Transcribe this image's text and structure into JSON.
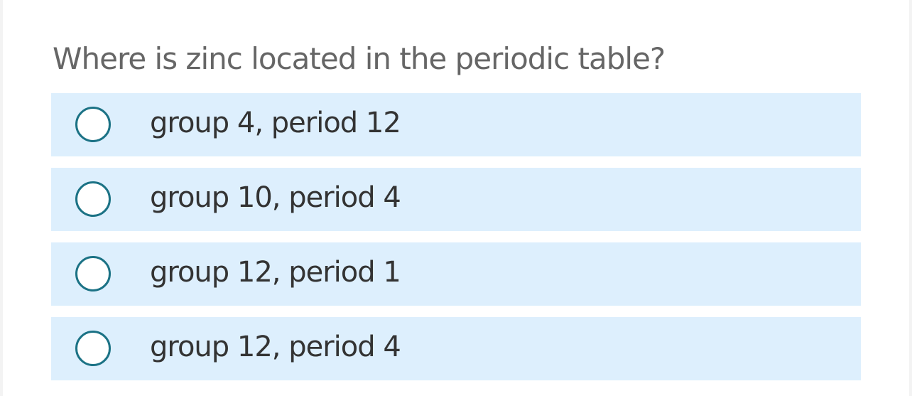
{
  "question": "Where is zinc located in the periodic table?",
  "options": [
    "group 4, period 12",
    "group 10, period 4",
    "group 12, period 1",
    "group 12, period 4"
  ]
}
